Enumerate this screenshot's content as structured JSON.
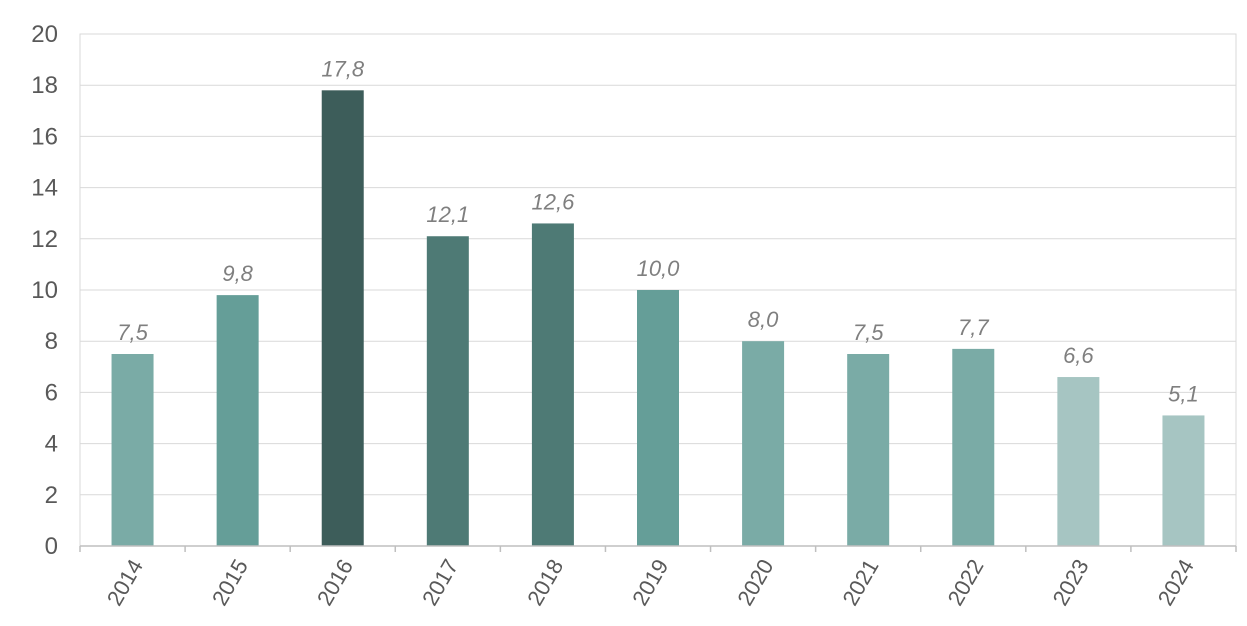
{
  "chart_data": {
    "type": "bar",
    "categories": [
      "2014",
      "2015",
      "2016",
      "2017",
      "2018",
      "2019",
      "2020",
      "2021",
      "2022",
      "2023",
      "2024"
    ],
    "values": [
      7.5,
      9.8,
      17.8,
      12.1,
      12.6,
      10.0,
      8.0,
      7.5,
      7.7,
      6.6,
      5.1
    ],
    "data_labels": [
      "7,5",
      "9,8",
      "17,8",
      "12,1",
      "12,6",
      "10,0",
      "8,0",
      "7,5",
      "7,7",
      "6,6",
      "5,1"
    ],
    "bar_colors": [
      "#7aaba6",
      "#659e98",
      "#3d5d5a",
      "#4e7a75",
      "#4e7a75",
      "#659e98",
      "#7aaba6",
      "#7aaba6",
      "#7aaba6",
      "#a6c5c2",
      "#a6c5c2"
    ],
    "ylim": [
      0,
      20
    ],
    "yticks": [
      0,
      2,
      4,
      6,
      8,
      10,
      12,
      14,
      16,
      18,
      20
    ],
    "grid": true,
    "legend": "none"
  }
}
